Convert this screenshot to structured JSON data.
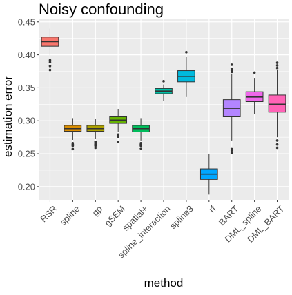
{
  "chart_data": {
    "type": "boxplot",
    "title": "Noisy confounding",
    "xlabel": "method",
    "ylabel": "estimation error",
    "ylim": [
      0.18,
      0.455
    ],
    "yticks": [
      0.2,
      0.25,
      0.3,
      0.35,
      0.4,
      0.45
    ],
    "ytick_labels": [
      "0.20",
      "0.25",
      "0.30",
      "0.35",
      "0.40",
      "0.45"
    ],
    "grid": true,
    "background": "#ebebeb",
    "legend": "none",
    "categories": [
      "RSR",
      "spline",
      "gp",
      "gSEM",
      "spatial+",
      "spline_interaction",
      "spline3",
      "rf",
      "BART",
      "DML_spline",
      "DML_BART"
    ],
    "boxes": [
      {
        "name": "RSR",
        "color": "#f8766d",
        "whisker_low": 0.399,
        "q1": 0.413,
        "median": 0.42,
        "q3": 0.427,
        "whisker_high": 0.44,
        "outliers": [
          0.392,
          0.389,
          0.383,
          0.377
        ]
      },
      {
        "name": "spline",
        "color": "#db8e00",
        "whisker_low": 0.271,
        "q1": 0.284,
        "median": 0.288,
        "q3": 0.293,
        "whisker_high": 0.304,
        "outliers": [
          0.266,
          0.264,
          0.262,
          0.257
        ]
      },
      {
        "name": "gp",
        "color": "#aea200",
        "whisker_low": 0.272,
        "q1": 0.284,
        "median": 0.288,
        "q3": 0.293,
        "whisker_high": 0.303,
        "outliers": [
          0.268,
          0.266,
          0.264,
          0.262,
          0.259
        ]
      },
      {
        "name": "gSEM",
        "color": "#64b200",
        "whisker_low": 0.283,
        "q1": 0.296,
        "median": 0.301,
        "q3": 0.306,
        "whisker_high": 0.318,
        "outliers": [
          0.279,
          0.276,
          0.268
        ]
      },
      {
        "name": "spatial+",
        "color": "#00bd5c",
        "whisker_low": 0.27,
        "q1": 0.283,
        "median": 0.288,
        "q3": 0.293,
        "whisker_high": 0.304,
        "outliers": [
          0.266,
          0.264,
          0.262,
          0.258
        ]
      },
      {
        "name": "spline_interaction",
        "color": "#00c1a7",
        "whisker_low": 0.33,
        "q1": 0.341,
        "median": 0.345,
        "q3": 0.349,
        "whisker_high": 0.355,
        "outliers": [
          0.36
        ]
      },
      {
        "name": "spline3",
        "color": "#00bade",
        "whisker_low": 0.336,
        "q1": 0.359,
        "median": 0.367,
        "q3": 0.376,
        "whisker_high": 0.397,
        "outliers": [
          0.404
        ]
      },
      {
        "name": "rf",
        "color": "#00a6ff",
        "whisker_low": 0.188,
        "q1": 0.211,
        "median": 0.219,
        "q3": 0.227,
        "whisker_high": 0.25,
        "outliers": []
      },
      {
        "name": "BART",
        "color": "#b385ff",
        "whisker_low": 0.27,
        "q1": 0.306,
        "median": 0.319,
        "q3": 0.332,
        "whisker_high": 0.371,
        "outliers": [
          0.385,
          0.379,
          0.376,
          0.374,
          0.258,
          0.255,
          0.251
        ]
      },
      {
        "name": "DML_spline",
        "color": "#ef67eb",
        "whisker_low": 0.31,
        "q1": 0.329,
        "median": 0.336,
        "q3": 0.344,
        "whisker_high": 0.365,
        "outliers": [
          0.373
        ]
      },
      {
        "name": "DML_BART",
        "color": "#ff63b6",
        "whisker_low": 0.275,
        "q1": 0.313,
        "median": 0.325,
        "q3": 0.339,
        "whisker_high": 0.377,
        "outliers": [
          0.388,
          0.384,
          0.38,
          0.27,
          0.264,
          0.259
        ]
      }
    ]
  }
}
